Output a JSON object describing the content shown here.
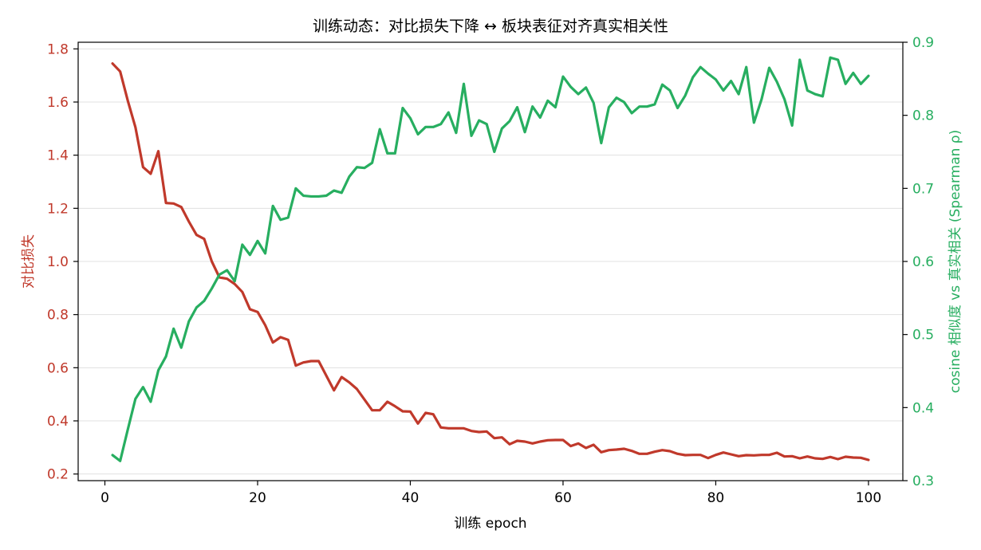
{
  "chart_data": {
    "type": "line",
    "title": "训练动态：对比损失下降 ↔ 板块表征对齐真实相关性",
    "xlabel": "训练 epoch",
    "ylabel_left": "对比损失",
    "ylabel_right": "cosine 相似度 vs 真实相关 (Spearman ρ)",
    "xlim": [
      -3.5,
      104.5
    ],
    "ylim_left": [
      0.175,
      1.825
    ],
    "ylim_right": [
      0.3,
      0.9
    ],
    "xticks": [
      0,
      20,
      40,
      60,
      80,
      100
    ],
    "yticks_left": [
      0.2,
      0.4,
      0.6,
      0.8,
      1.0,
      1.2,
      1.4,
      1.6,
      1.8
    ],
    "yticks_right": [
      0.3,
      0.4,
      0.5,
      0.6,
      0.7,
      0.8,
      0.9
    ],
    "grid": "horizontal",
    "colors": {
      "loss": "#c0392b",
      "spearman": "#27ae60"
    },
    "x": [
      1,
      2,
      3,
      4,
      5,
      6,
      7,
      8,
      9,
      10,
      11,
      12,
      13,
      14,
      15,
      16,
      17,
      18,
      19,
      20,
      21,
      22,
      23,
      24,
      25,
      26,
      27,
      28,
      29,
      30,
      31,
      32,
      33,
      34,
      35,
      36,
      37,
      38,
      39,
      40,
      41,
      42,
      43,
      44,
      45,
      46,
      47,
      48,
      49,
      50,
      51,
      52,
      53,
      54,
      55,
      56,
      57,
      58,
      59,
      60,
      61,
      62,
      63,
      64,
      65,
      66,
      67,
      68,
      69,
      70,
      71,
      72,
      73,
      74,
      75,
      76,
      77,
      78,
      79,
      80,
      81,
      82,
      83,
      84,
      85,
      86,
      87,
      88,
      89,
      90,
      91,
      92,
      93,
      94,
      95,
      96,
      97,
      98,
      99,
      100
    ],
    "series": [
      {
        "axis": "left",
        "color": "#c0392b",
        "values": [
          1.745,
          1.715,
          1.605,
          1.505,
          1.355,
          1.33,
          1.415,
          1.22,
          1.218,
          1.205,
          1.15,
          1.1,
          1.085,
          1.0,
          0.94,
          0.935,
          0.915,
          0.885,
          0.82,
          0.81,
          0.76,
          0.695,
          0.715,
          0.705,
          0.608,
          0.62,
          0.625,
          0.625,
          0.57,
          0.515,
          0.565,
          0.545,
          0.52,
          0.48,
          0.44,
          0.44,
          0.472,
          0.455,
          0.436,
          0.435,
          0.39,
          0.43,
          0.425,
          0.375,
          0.372,
          0.372,
          0.372,
          0.362,
          0.358,
          0.36,
          0.335,
          0.338,
          0.312,
          0.325,
          0.322,
          0.315,
          0.322,
          0.327,
          0.328,
          0.328,
          0.305,
          0.315,
          0.298,
          0.31,
          0.282,
          0.29,
          0.292,
          0.295,
          0.287,
          0.276,
          0.276,
          0.284,
          0.29,
          0.286,
          0.276,
          0.271,
          0.272,
          0.272,
          0.26,
          0.272,
          0.281,
          0.274,
          0.267,
          0.271,
          0.27,
          0.272,
          0.272,
          0.28,
          0.266,
          0.267,
          0.259,
          0.266,
          0.259,
          0.257,
          0.264,
          0.256,
          0.265,
          0.262,
          0.261,
          0.253
        ]
      },
      {
        "axis": "right",
        "color": "#27ae60",
        "values": [
          0.335,
          0.327,
          0.37,
          0.412,
          0.428,
          0.408,
          0.451,
          0.47,
          0.508,
          0.482,
          0.518,
          0.537,
          0.546,
          0.563,
          0.582,
          0.588,
          0.573,
          0.623,
          0.609,
          0.628,
          0.611,
          0.676,
          0.657,
          0.66,
          0.7,
          0.69,
          0.689,
          0.689,
          0.69,
          0.697,
          0.694,
          0.716,
          0.729,
          0.728,
          0.735,
          0.781,
          0.748,
          0.748,
          0.81,
          0.796,
          0.774,
          0.784,
          0.784,
          0.788,
          0.804,
          0.776,
          0.843,
          0.772,
          0.793,
          0.788,
          0.75,
          0.782,
          0.792,
          0.811,
          0.777,
          0.812,
          0.797,
          0.82,
          0.811,
          0.853,
          0.839,
          0.829,
          0.838,
          0.817,
          0.762,
          0.811,
          0.824,
          0.818,
          0.803,
          0.812,
          0.812,
          0.815,
          0.842,
          0.834,
          0.81,
          0.827,
          0.852,
          0.866,
          0.857,
          0.849,
          0.834,
          0.847,
          0.829,
          0.866,
          0.79,
          0.822,
          0.865,
          0.846,
          0.822,
          0.786,
          0.876,
          0.834,
          0.829,
          0.826,
          0.879,
          0.876,
          0.843,
          0.858,
          0.843,
          0.854
        ]
      }
    ]
  }
}
